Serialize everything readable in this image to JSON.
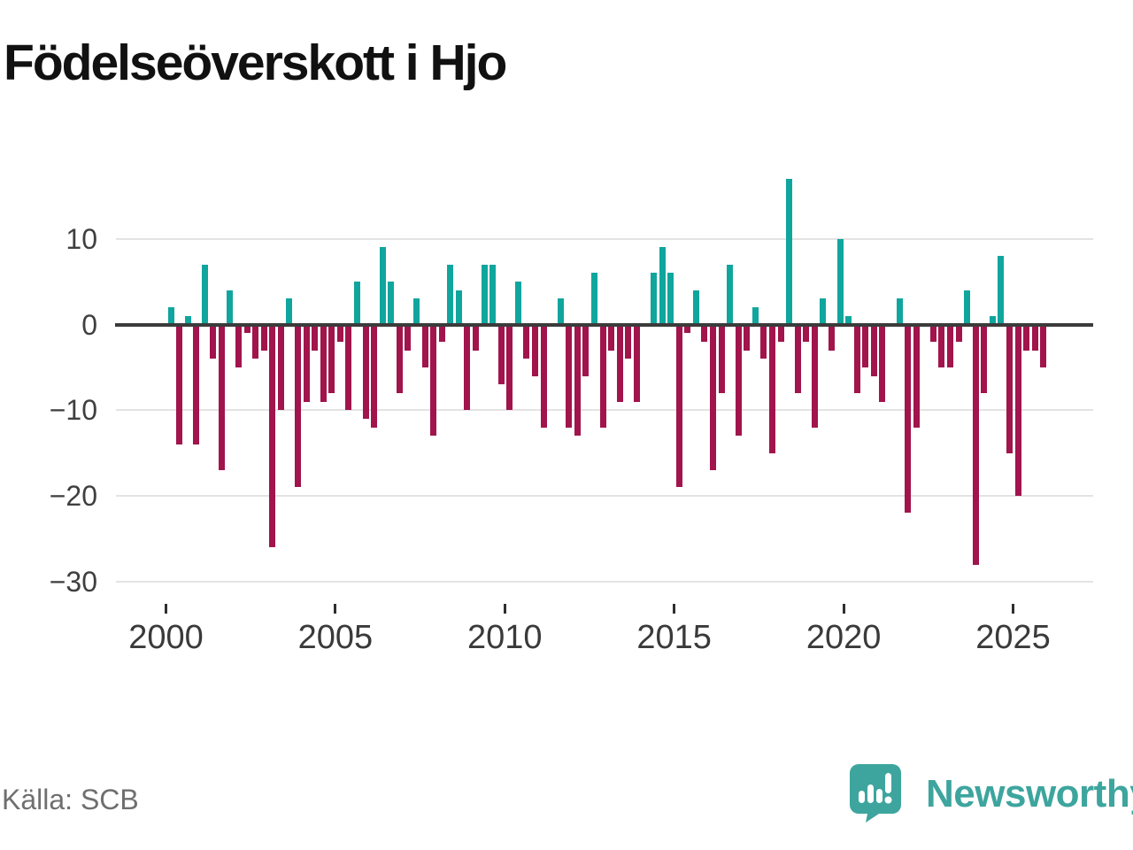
{
  "header": {
    "title": "Födelseöverskott i Hjo"
  },
  "footer": {
    "source": "Källa: SCB",
    "brand": "Newsworthy"
  },
  "colors": {
    "positive_bar": "#10a69e",
    "negative_bar": "#a1144c",
    "zero_line": "#3b3b3b",
    "gridline": "#e3e3e3",
    "brand_teal": "#3da59e",
    "axis_text": "#3a3a3a",
    "source_text": "#6f6f6f"
  },
  "chart_data": {
    "type": "bar",
    "title": "Födelseöverskott i Hjo",
    "xlabel": "",
    "ylabel": "",
    "frequency": "quarterly",
    "x_start_year": 2000,
    "periods_per_year": 4,
    "x_tick_years": [
      2000,
      2005,
      2010,
      2015,
      2020,
      2025
    ],
    "x_tick_labels": [
      "2000",
      "2005",
      "2010",
      "2015",
      "2020",
      "2025"
    ],
    "y_ticks": [
      10,
      0,
      -10,
      -20,
      -30
    ],
    "y_tick_labels": [
      "10",
      "0",
      "−10",
      "−20",
      "−30"
    ],
    "ylim": [
      -30,
      18
    ],
    "grid": true,
    "legend": "none",
    "values": [
      2,
      -14,
      1,
      -14,
      7,
      -4,
      -17,
      4,
      -5,
      -1,
      -4,
      -3,
      -26,
      -10,
      3,
      -19,
      -9,
      -3,
      -9,
      -8,
      -2,
      -10,
      5,
      -11,
      -12,
      9,
      5,
      -8,
      -3,
      3,
      -5,
      -13,
      -2,
      7,
      4,
      -10,
      -3,
      7,
      7,
      -7,
      -10,
      5,
      -4,
      -6,
      -12,
      0,
      3,
      -12,
      -13,
      -6,
      6,
      -12,
      -3,
      -9,
      -4,
      -9,
      0,
      6,
      9,
      6,
      -19,
      -1,
      4,
      -2,
      -17,
      -8,
      7,
      -13,
      -3,
      2,
      -4,
      -15,
      -2,
      17,
      -8,
      -2,
      -12,
      3,
      -3,
      10,
      1,
      -8,
      -5,
      -6,
      -9,
      0,
      3,
      -22,
      -12,
      0,
      -2,
      -5,
      -5,
      -2,
      4,
      -28,
      -8,
      1,
      8,
      -15,
      -20,
      -3,
      -3,
      -5
    ]
  }
}
